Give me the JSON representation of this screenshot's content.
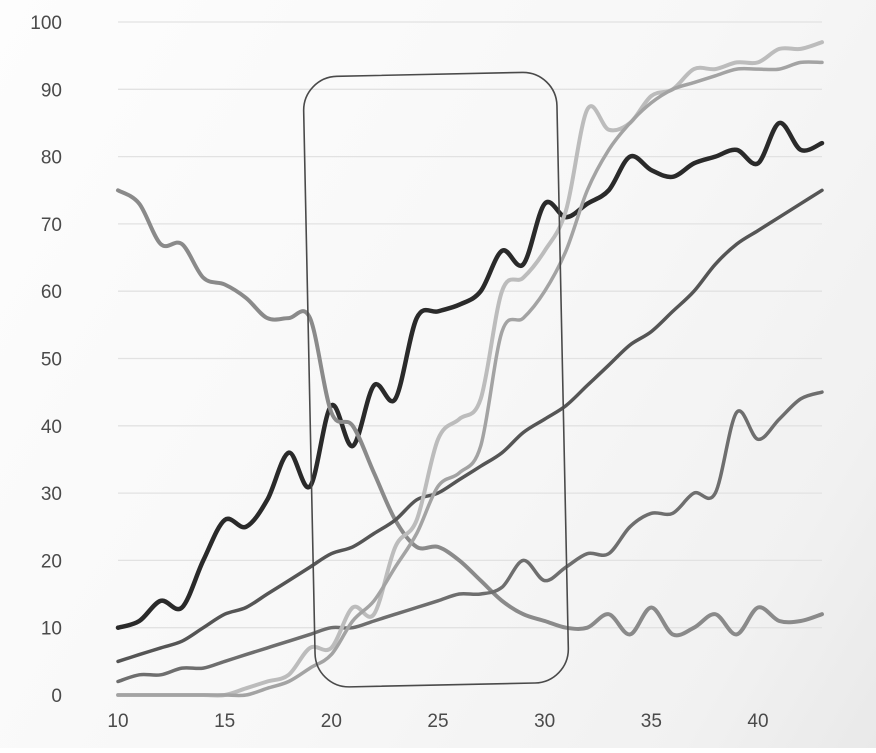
{
  "chart_data": {
    "type": "line",
    "title": "",
    "xlabel": "",
    "ylabel": "",
    "xlim": [
      10,
      43
    ],
    "ylim": [
      0,
      100
    ],
    "grid": true,
    "legend": "none",
    "x_ticks": [
      10,
      15,
      20,
      25,
      30,
      35,
      40
    ],
    "y_ticks": [
      0,
      10,
      20,
      30,
      40,
      50,
      60,
      70,
      80,
      90,
      100
    ],
    "x": [
      10,
      11,
      12,
      13,
      14,
      15,
      16,
      17,
      18,
      19,
      20,
      21,
      22,
      23,
      24,
      25,
      26,
      27,
      28,
      29,
      30,
      31,
      32,
      33,
      34,
      35,
      36,
      37,
      38,
      39,
      40,
      41,
      42,
      43
    ],
    "series": [
      {
        "color": "#2a2a2a",
        "width": 4.5,
        "values": [
          10,
          11,
          14,
          13,
          20,
          26,
          25,
          29,
          36,
          31,
          43,
          37,
          46,
          44,
          56,
          57,
          58,
          60,
          66,
          64,
          73,
          71,
          73,
          75,
          80,
          78,
          77,
          79,
          80,
          81,
          79,
          85,
          81,
          82
        ]
      },
      {
        "color": "#8a8a8a",
        "width": 4,
        "values": [
          75,
          73,
          67,
          67,
          62,
          61,
          59,
          56,
          56,
          56,
          42,
          40,
          33,
          26,
          22,
          22,
          20,
          17,
          14,
          12,
          11,
          10,
          10,
          12,
          9,
          13,
          9,
          10,
          12,
          9,
          13,
          11,
          11,
          12
        ]
      },
      {
        "color": "#555555",
        "width": 3.5,
        "values": [
          5,
          6,
          7,
          8,
          10,
          12,
          13,
          15,
          17,
          19,
          21,
          22,
          24,
          26,
          29,
          30,
          32,
          34,
          36,
          39,
          41,
          43,
          46,
          49,
          52,
          54,
          57,
          60,
          64,
          67,
          69,
          71,
          73,
          75
        ]
      },
      {
        "color": "#6e6e6e",
        "width": 3.5,
        "values": [
          2,
          3,
          3,
          4,
          4,
          5,
          6,
          7,
          8,
          9,
          10,
          10,
          11,
          12,
          13,
          14,
          15,
          15,
          16,
          20,
          17,
          19,
          21,
          21,
          25,
          27,
          27,
          30,
          30,
          42,
          38,
          41,
          44,
          45
        ]
      },
      {
        "color": "#bcbcbc",
        "width": 4,
        "values": [
          0,
          0,
          0,
          0,
          0,
          0,
          1,
          2,
          3,
          7,
          7,
          13,
          12,
          22,
          26,
          38,
          41,
          44,
          60,
          62,
          66,
          72,
          87,
          84,
          85,
          89,
          90,
          93,
          93,
          94,
          94,
          96,
          96,
          97
        ]
      },
      {
        "color": "#a3a3a3",
        "width": 3.5,
        "values": [
          0,
          0,
          0,
          0,
          0,
          0,
          0,
          1,
          2,
          4,
          6,
          11,
          14,
          19,
          24,
          31,
          33,
          37,
          54,
          56,
          60,
          66,
          75,
          81,
          85,
          88,
          90,
          91,
          92,
          93,
          93,
          93,
          94,
          94
        ]
      }
    ],
    "annotations": [
      {
        "type": "rounded-rectangle",
        "x_range": [
          20,
          30
        ],
        "y_range": [
          0,
          90
        ]
      }
    ]
  }
}
